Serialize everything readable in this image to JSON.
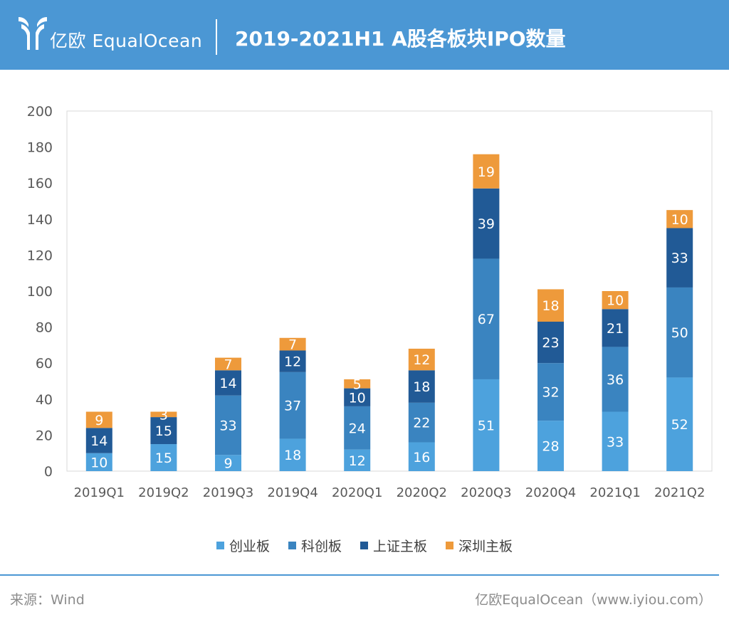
{
  "header": {
    "brand": "亿欧 EqualOcean",
    "title": "2019-2021H1 A股各板块IPO数量"
  },
  "chart_data": {
    "type": "bar",
    "stacked": true,
    "title": "2019-2021H1 A股各板块IPO数量",
    "categories": [
      "2019Q1",
      "2019Q2",
      "2019Q3",
      "2019Q4",
      "2020Q1",
      "2020Q2",
      "2020Q3",
      "2020Q4",
      "2021Q1",
      "2021Q2"
    ],
    "series": [
      {
        "name": "创业板",
        "color": "#4da2dd",
        "values": [
          10,
          15,
          9,
          18,
          12,
          16,
          51,
          28,
          33,
          52
        ]
      },
      {
        "name": "科创板",
        "color": "#3a84c0",
        "values": [
          null,
          null,
          33,
          37,
          24,
          22,
          67,
          32,
          36,
          50
        ]
      },
      {
        "name": "上证主板",
        "color": "#215a96",
        "values": [
          14,
          15,
          14,
          12,
          10,
          18,
          39,
          23,
          21,
          33
        ]
      },
      {
        "name": "深圳主板",
        "color": "#ee9a3b",
        "values": [
          9,
          3,
          7,
          7,
          5,
          12,
          19,
          18,
          10,
          10
        ]
      }
    ],
    "ylim": [
      0,
      200
    ],
    "yticks": [
      0,
      20,
      40,
      60,
      80,
      100,
      120,
      140,
      160,
      180,
      200
    ],
    "grid": false,
    "legend_position": "bottom"
  },
  "footer": {
    "source": "来源：Wind",
    "credit": "亿欧EqualOcean（www.iyiou.com）"
  }
}
